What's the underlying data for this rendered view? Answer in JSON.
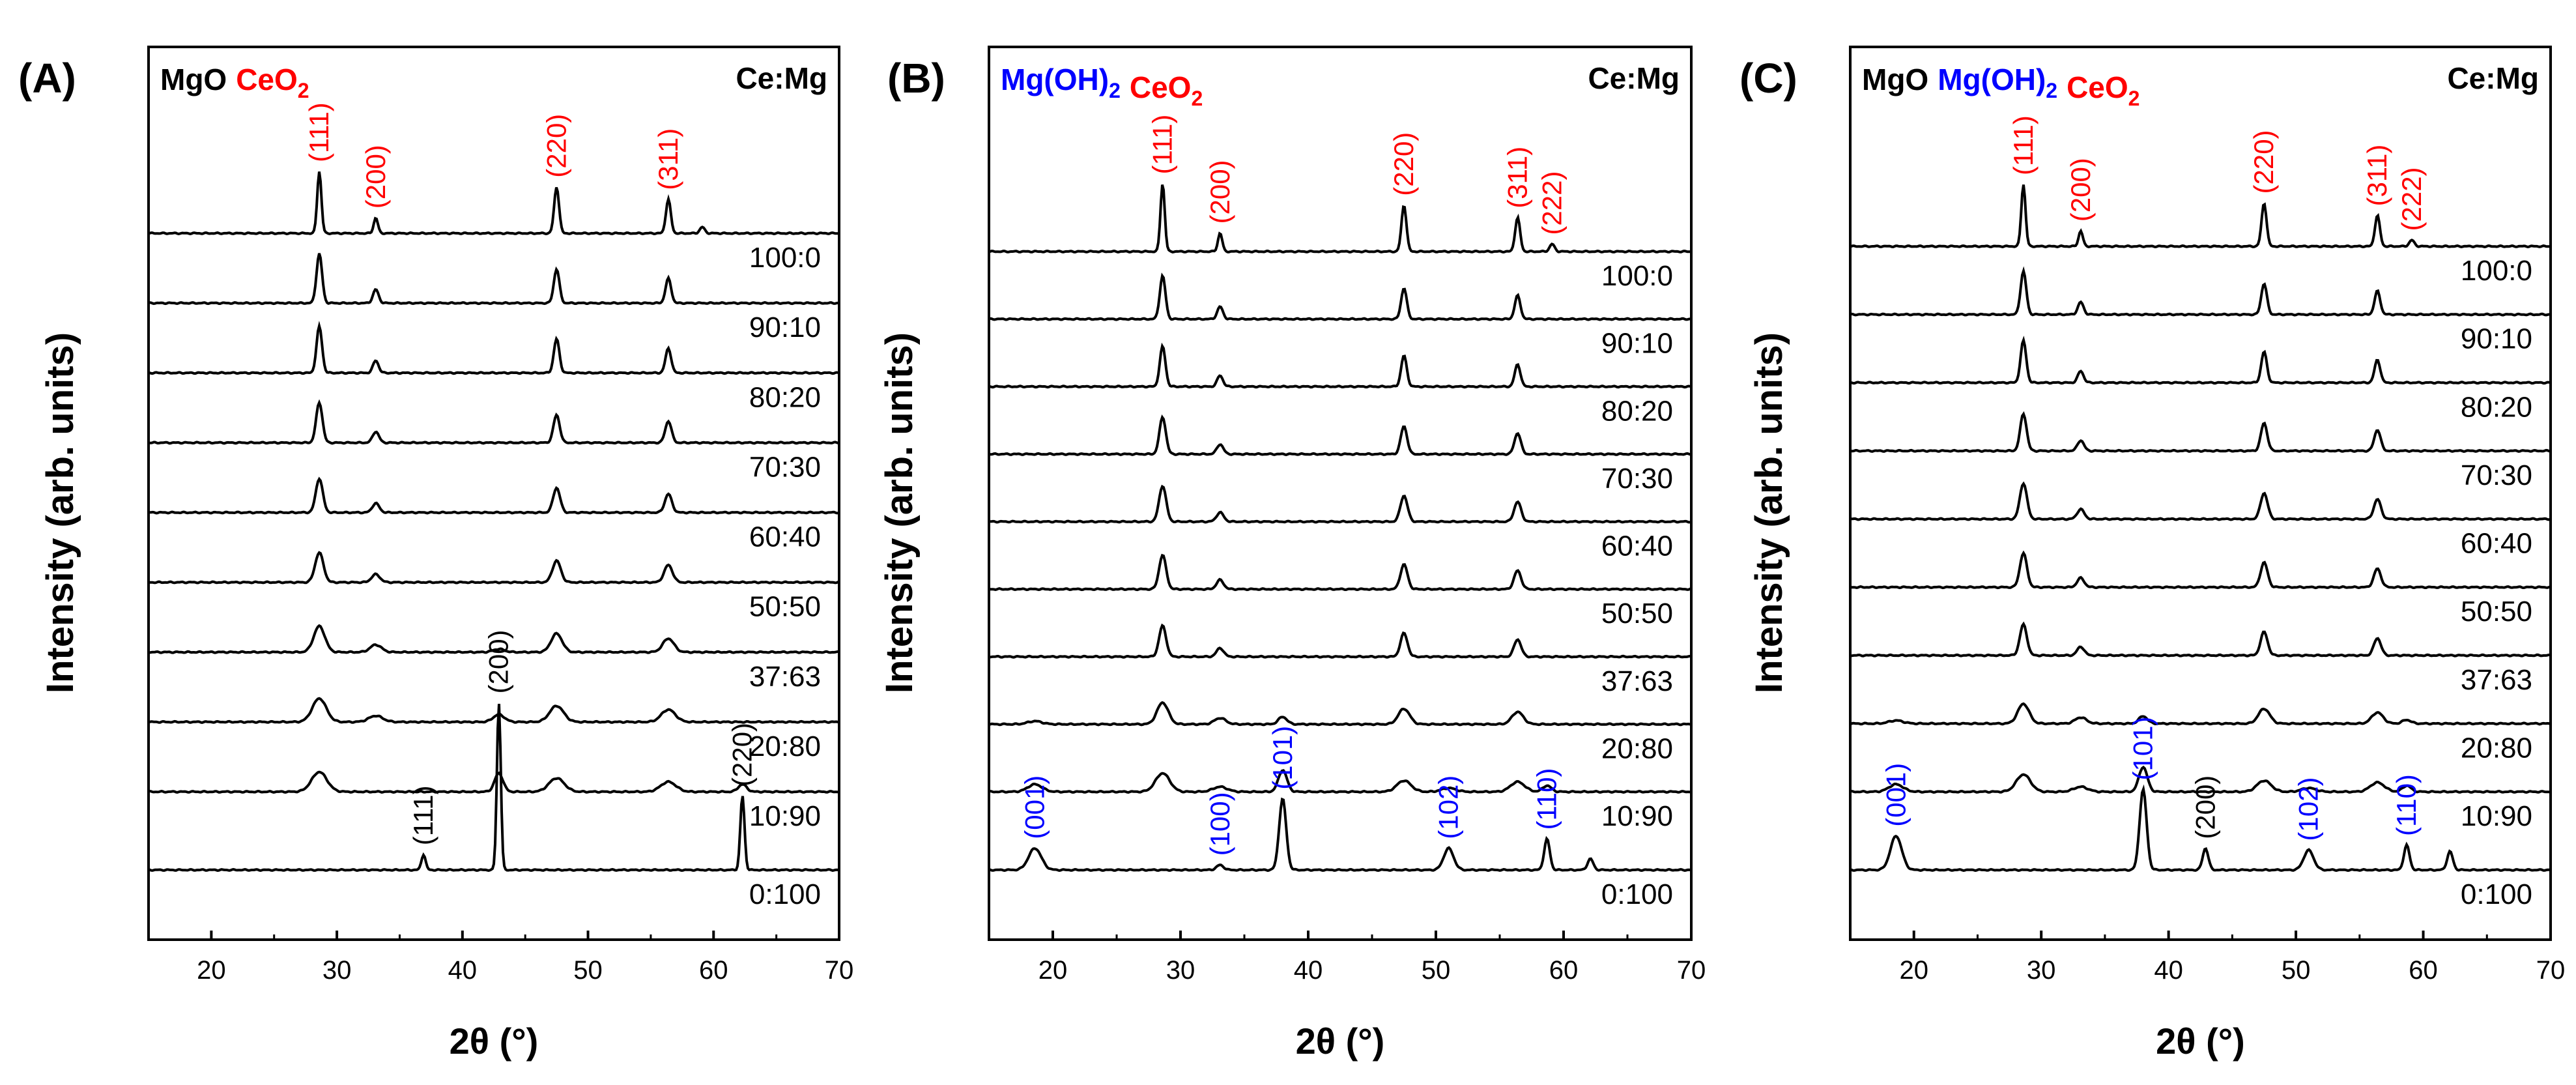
{
  "figure": {
    "x_label": "2θ (°)",
    "y_label": "Intensity (arb. units)",
    "ratio_header": "Ce:Mg",
    "x_ticks": [
      20,
      30,
      40,
      50,
      60,
      70
    ],
    "colors": {
      "ceo2": "#ff0000",
      "mgoh2": "#0000ff",
      "mgo": "#000000",
      "line": "#000000"
    }
  },
  "chart_data": [
    {
      "type": "line",
      "panel": "(A)",
      "title_parts": [
        {
          "text": "MgO",
          "color": "#000000"
        },
        {
          "text": "CeO",
          "sub": "2",
          "color": "#ff0000"
        }
      ],
      "xlabel": "2θ (°)",
      "ylabel": "Intensity (arb. units)",
      "xlim": [
        15,
        70
      ],
      "series": [
        {
          "name": "100:0",
          "peaks": [
            [
              28.6,
              1.0,
              0.3
            ],
            [
              33.1,
              0.25,
              0.3
            ],
            [
              47.5,
              0.75,
              0.35
            ],
            [
              56.4,
              0.55,
              0.35
            ],
            [
              59.1,
              0.1,
              0.35
            ]
          ]
        },
        {
          "name": "90:10",
          "peaks": [
            [
              28.6,
              0.8,
              0.4
            ],
            [
              33.1,
              0.22,
              0.4
            ],
            [
              47.5,
              0.55,
              0.4
            ],
            [
              56.4,
              0.4,
              0.4
            ]
          ]
        },
        {
          "name": "80:20",
          "peaks": [
            [
              28.6,
              0.75,
              0.4
            ],
            [
              33.1,
              0.2,
              0.4
            ],
            [
              47.5,
              0.55,
              0.4
            ],
            [
              56.4,
              0.4,
              0.4
            ]
          ]
        },
        {
          "name": "70:30",
          "peaks": [
            [
              28.6,
              0.65,
              0.45
            ],
            [
              33.1,
              0.18,
              0.45
            ],
            [
              47.5,
              0.45,
              0.45
            ],
            [
              56.4,
              0.35,
              0.45
            ]
          ]
        },
        {
          "name": "60:40",
          "peaks": [
            [
              28.6,
              0.55,
              0.5
            ],
            [
              33.1,
              0.15,
              0.5
            ],
            [
              47.5,
              0.4,
              0.5
            ],
            [
              56.4,
              0.3,
              0.5
            ]
          ]
        },
        {
          "name": "50:50",
          "peaks": [
            [
              28.6,
              0.48,
              0.6
            ],
            [
              33.1,
              0.13,
              0.6
            ],
            [
              47.5,
              0.35,
              0.6
            ],
            [
              56.4,
              0.28,
              0.6
            ]
          ]
        },
        {
          "name": "37:63",
          "peaks": [
            [
              28.6,
              0.42,
              0.8
            ],
            [
              33.1,
              0.12,
              0.8
            ],
            [
              42.9,
              0.05,
              0.8
            ],
            [
              47.5,
              0.3,
              0.8
            ],
            [
              56.4,
              0.22,
              0.8
            ]
          ]
        },
        {
          "name": "20:80",
          "peaks": [
            [
              28.6,
              0.38,
              1.0
            ],
            [
              33.1,
              0.1,
              1.0
            ],
            [
              42.9,
              0.12,
              0.8
            ],
            [
              47.5,
              0.26,
              1.0
            ],
            [
              56.4,
              0.2,
              1.0
            ]
          ]
        },
        {
          "name": "10:90",
          "peaks": [
            [
              28.6,
              0.32,
              1.1
            ],
            [
              42.9,
              0.3,
              0.6
            ],
            [
              47.5,
              0.22,
              1.1
            ],
            [
              56.4,
              0.16,
              1.1
            ],
            [
              62.3,
              0.12,
              0.6
            ]
          ]
        },
        {
          "name": "0:100",
          "peaks": [
            [
              36.9,
              0.25,
              0.3
            ],
            [
              42.9,
              2.7,
              0.28
            ],
            [
              62.3,
              1.2,
              0.3
            ]
          ]
        }
      ],
      "annotations": [
        {
          "text": "(111)",
          "x": 28.6,
          "color": "#ff0000",
          "row": 0
        },
        {
          "text": "(200)",
          "x": 33.1,
          "color": "#ff0000",
          "row": 0
        },
        {
          "text": "(220)",
          "x": 47.5,
          "color": "#ff0000",
          "row": 0
        },
        {
          "text": "(311)",
          "x": 56.4,
          "color": "#ff0000",
          "row": 0
        },
        {
          "text": "(111)",
          "x": 36.9,
          "color": "#000000",
          "row": 9
        },
        {
          "text": "(200)",
          "x": 42.9,
          "color": "#000000",
          "row": 9
        },
        {
          "text": "(220)",
          "x": 62.3,
          "color": "#000000",
          "row": 9
        }
      ]
    },
    {
      "type": "line",
      "panel": "(B)",
      "title_parts": [
        {
          "text": "Mg(OH)",
          "sub": "2",
          "color": "#0000ff"
        },
        {
          "text": "CeO",
          "sub": "2",
          "color": "#ff0000"
        }
      ],
      "xlabel": "2θ (°)",
      "ylabel": "Intensity (arb. units)",
      "xlim": [
        15,
        70
      ],
      "series": [
        {
          "name": "100:0",
          "peaks": [
            [
              28.6,
              1.1,
              0.3
            ],
            [
              33.1,
              0.3,
              0.3
            ],
            [
              47.5,
              0.75,
              0.35
            ],
            [
              56.4,
              0.55,
              0.35
            ],
            [
              59.1,
              0.12,
              0.35
            ]
          ]
        },
        {
          "name": "90:10",
          "peaks": [
            [
              28.6,
              0.7,
              0.4
            ],
            [
              33.1,
              0.2,
              0.4
            ],
            [
              47.5,
              0.5,
              0.4
            ],
            [
              56.4,
              0.38,
              0.4
            ]
          ]
        },
        {
          "name": "80:20",
          "peaks": [
            [
              28.6,
              0.65,
              0.4
            ],
            [
              33.1,
              0.18,
              0.4
            ],
            [
              47.5,
              0.5,
              0.4
            ],
            [
              56.4,
              0.36,
              0.4
            ]
          ]
        },
        {
          "name": "70:30",
          "peaks": [
            [
              28.6,
              0.6,
              0.45
            ],
            [
              33.1,
              0.16,
              0.45
            ],
            [
              47.5,
              0.45,
              0.45
            ],
            [
              56.4,
              0.34,
              0.45
            ]
          ]
        },
        {
          "name": "60:40",
          "peaks": [
            [
              28.6,
              0.58,
              0.5
            ],
            [
              33.1,
              0.15,
              0.5
            ],
            [
              47.5,
              0.42,
              0.5
            ],
            [
              56.4,
              0.32,
              0.5
            ]
          ]
        },
        {
          "name": "50:50",
          "peaks": [
            [
              28.6,
              0.55,
              0.5
            ],
            [
              33.1,
              0.15,
              0.5
            ],
            [
              47.5,
              0.4,
              0.5
            ],
            [
              56.4,
              0.3,
              0.5
            ]
          ]
        },
        {
          "name": "37:63",
          "peaks": [
            [
              28.6,
              0.5,
              0.5
            ],
            [
              33.1,
              0.14,
              0.5
            ],
            [
              47.5,
              0.38,
              0.5
            ],
            [
              56.4,
              0.28,
              0.5
            ]
          ]
        },
        {
          "name": "20:80",
          "peaks": [
            [
              18.6,
              0.05,
              1.0
            ],
            [
              28.6,
              0.35,
              0.8
            ],
            [
              33.1,
              0.1,
              0.8
            ],
            [
              38.0,
              0.12,
              0.6
            ],
            [
              47.5,
              0.25,
              0.8
            ],
            [
              56.4,
              0.2,
              0.8
            ]
          ]
        },
        {
          "name": "10:90",
          "peaks": [
            [
              18.6,
              0.12,
              1.0
            ],
            [
              28.6,
              0.3,
              1.0
            ],
            [
              33.1,
              0.08,
              1.0
            ],
            [
              38.0,
              0.35,
              0.6
            ],
            [
              47.5,
              0.18,
              1.0
            ],
            [
              51.0,
              0.06,
              1.0
            ],
            [
              56.4,
              0.16,
              1.0
            ],
            [
              58.7,
              0.1,
              0.6
            ]
          ]
        },
        {
          "name": "0:100",
          "peaks": [
            [
              18.6,
              0.35,
              0.9
            ],
            [
              33.1,
              0.08,
              0.5
            ],
            [
              38.0,
              1.15,
              0.5
            ],
            [
              51.0,
              0.35,
              0.7
            ],
            [
              58.7,
              0.5,
              0.4
            ],
            [
              62.1,
              0.18,
              0.4
            ]
          ]
        }
      ],
      "annotations": [
        {
          "text": "(111)",
          "x": 28.6,
          "color": "#ff0000",
          "row": 0
        },
        {
          "text": "(200)",
          "x": 33.1,
          "color": "#ff0000",
          "row": 0
        },
        {
          "text": "(220)",
          "x": 47.5,
          "color": "#ff0000",
          "row": 0
        },
        {
          "text": "(311)",
          "x": 56.4,
          "color": "#ff0000",
          "row": 0
        },
        {
          "text": "(222)",
          "x": 59.1,
          "color": "#ff0000",
          "row": 0
        },
        {
          "text": "(001)",
          "x": 18.6,
          "color": "#0000ff",
          "row": 9
        },
        {
          "text": "(100)",
          "x": 33.1,
          "color": "#0000ff",
          "row": 9
        },
        {
          "text": "(101)",
          "x": 38.0,
          "color": "#0000ff",
          "row": 9
        },
        {
          "text": "(102)",
          "x": 51.0,
          "color": "#0000ff",
          "row": 9
        },
        {
          "text": "(110)",
          "x": 58.7,
          "color": "#0000ff",
          "row": 9
        }
      ]
    },
    {
      "type": "line",
      "panel": "(C)",
      "title_parts": [
        {
          "text": "MgO",
          "color": "#000000"
        },
        {
          "text": "Mg(OH)",
          "sub": "2",
          "color": "#0000ff"
        },
        {
          "text": "CeO",
          "sub": "2",
          "color": "#ff0000"
        }
      ],
      "xlabel": "2θ (°)",
      "ylabel": "Intensity (arb. units)",
      "xlim": [
        15,
        70
      ],
      "series": [
        {
          "name": "100:0",
          "peaks": [
            [
              28.6,
              1.0,
              0.3
            ],
            [
              33.1,
              0.25,
              0.3
            ],
            [
              47.5,
              0.7,
              0.35
            ],
            [
              56.4,
              0.5,
              0.35
            ],
            [
              59.1,
              0.1,
              0.35
            ]
          ]
        },
        {
          "name": "90:10",
          "peaks": [
            [
              28.6,
              0.7,
              0.4
            ],
            [
              33.1,
              0.2,
              0.4
            ],
            [
              47.5,
              0.5,
              0.4
            ],
            [
              56.4,
              0.38,
              0.4
            ]
          ]
        },
        {
          "name": "80:20",
          "peaks": [
            [
              28.6,
              0.68,
              0.4
            ],
            [
              33.1,
              0.19,
              0.4
            ],
            [
              47.5,
              0.5,
              0.4
            ],
            [
              56.4,
              0.37,
              0.4
            ]
          ]
        },
        {
          "name": "70:30",
          "peaks": [
            [
              28.6,
              0.6,
              0.45
            ],
            [
              33.1,
              0.17,
              0.45
            ],
            [
              47.5,
              0.45,
              0.45
            ],
            [
              56.4,
              0.34,
              0.45
            ]
          ]
        },
        {
          "name": "60:40",
          "peaks": [
            [
              28.6,
              0.58,
              0.5
            ],
            [
              33.1,
              0.16,
              0.5
            ],
            [
              47.5,
              0.42,
              0.5
            ],
            [
              56.4,
              0.32,
              0.5
            ]
          ]
        },
        {
          "name": "50:50",
          "peaks": [
            [
              28.6,
              0.55,
              0.5
            ],
            [
              33.1,
              0.15,
              0.5
            ],
            [
              47.5,
              0.4,
              0.5
            ],
            [
              56.4,
              0.3,
              0.5
            ]
          ]
        },
        {
          "name": "37:63",
          "peaks": [
            [
              28.6,
              0.5,
              0.5
            ],
            [
              33.1,
              0.14,
              0.5
            ],
            [
              47.5,
              0.38,
              0.5
            ],
            [
              56.4,
              0.28,
              0.5
            ]
          ]
        },
        {
          "name": "20:80",
          "peaks": [
            [
              18.6,
              0.05,
              1.0
            ],
            [
              28.6,
              0.32,
              0.8
            ],
            [
              33.1,
              0.1,
              0.8
            ],
            [
              38.0,
              0.12,
              0.6
            ],
            [
              47.5,
              0.24,
              0.8
            ],
            [
              56.4,
              0.18,
              0.8
            ],
            [
              58.7,
              0.06,
              0.6
            ]
          ]
        },
        {
          "name": "10:90",
          "peaks": [
            [
              18.6,
              0.12,
              1.0
            ],
            [
              28.6,
              0.28,
              1.0
            ],
            [
              33.1,
              0.08,
              1.0
            ],
            [
              38.0,
              0.4,
              0.6
            ],
            [
              47.5,
              0.18,
              1.0
            ],
            [
              51.0,
              0.06,
              1.0
            ],
            [
              56.4,
              0.15,
              1.0
            ],
            [
              58.7,
              0.1,
              0.6
            ]
          ]
        },
        {
          "name": "0:100",
          "peaks": [
            [
              18.6,
              0.55,
              0.8
            ],
            [
              38.0,
              1.3,
              0.5
            ],
            [
              42.9,
              0.35,
              0.4
            ],
            [
              51.0,
              0.32,
              0.7
            ],
            [
              58.7,
              0.4,
              0.4
            ],
            [
              62.1,
              0.3,
              0.4
            ]
          ]
        }
      ],
      "annotations": [
        {
          "text": "(111)",
          "x": 28.6,
          "color": "#ff0000",
          "row": 0
        },
        {
          "text": "(200)",
          "x": 33.1,
          "color": "#ff0000",
          "row": 0
        },
        {
          "text": "(220)",
          "x": 47.5,
          "color": "#ff0000",
          "row": 0
        },
        {
          "text": "(311)",
          "x": 56.4,
          "color": "#ff0000",
          "row": 0
        },
        {
          "text": "(222)",
          "x": 59.1,
          "color": "#ff0000",
          "row": 0
        },
        {
          "text": "(001)",
          "x": 18.6,
          "color": "#0000ff",
          "row": 9
        },
        {
          "text": "(101)",
          "x": 38.0,
          "color": "#0000ff",
          "row": 9
        },
        {
          "text": "(200)",
          "x": 42.9,
          "color": "#000000",
          "row": 9
        },
        {
          "text": "(102)",
          "x": 51.0,
          "color": "#0000ff",
          "row": 9
        },
        {
          "text": "(110)",
          "x": 58.7,
          "color": "#0000ff",
          "row": 9
        }
      ]
    }
  ]
}
